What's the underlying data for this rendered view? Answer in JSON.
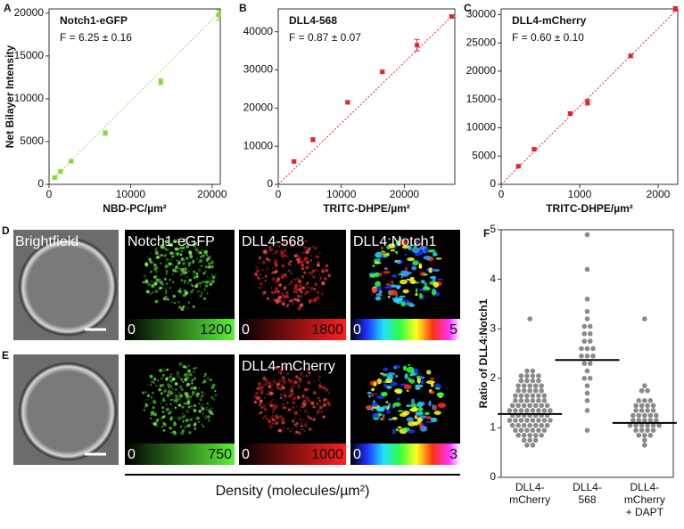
{
  "chart_data": [
    {
      "type": "scatter",
      "label": "A",
      "title": "Notch1-eGFP",
      "annotation": "F = 6.25 ± 0.16",
      "x_label": "NBD-PC/µm²",
      "y_label": "Net Bilayer Intensity",
      "color": "#7ddc3a",
      "fit_color": "#9ee060",
      "x": [
        700,
        1400,
        2700,
        6900,
        13700,
        20800
      ],
      "values": [
        800,
        1500,
        2700,
        6000,
        12000,
        19800
      ],
      "errors": [
        150,
        150,
        150,
        250,
        350,
        600
      ],
      "fit": {
        "x": [
          0,
          21000
        ],
        "values": [
          200,
          20200
        ]
      },
      "xlim": [
        0,
        21000
      ],
      "xticks": [
        0,
        10000,
        20000
      ],
      "ylim": [
        0,
        20500
      ],
      "yticks": [
        0,
        5000,
        10000,
        15000,
        20000
      ]
    },
    {
      "type": "scatter",
      "label": "B",
      "title": "DLL4-568",
      "annotation": "F = 0.87 ± 0.07",
      "x_label": "TRITC-DHPE/µm²",
      "color": "#e0262b",
      "fit_color": "#e0262b",
      "x": [
        2500,
        5500,
        11000,
        16500,
        22000,
        27500
      ],
      "values": [
        6000,
        11700,
        21500,
        29500,
        36500,
        44000
      ],
      "errors": [
        400,
        500,
        400,
        400,
        1500,
        400
      ],
      "fit": {
        "x": [
          0,
          28000
        ],
        "values": [
          0,
          44800
        ]
      },
      "xlim": [
        0,
        28000
      ],
      "xticks": [
        0,
        10000,
        20000
      ],
      "ylim": [
        0,
        46000
      ],
      "yticks": [
        0,
        10000,
        20000,
        30000,
        40000
      ]
    },
    {
      "type": "scatter",
      "label": "C",
      "title": "DLL4-mCherry",
      "annotation": "F = 0.60 ± 0.10",
      "x_label": "TRITC-DHPE/µm²",
      "color": "#e0262b",
      "fit_color": "#e0262b",
      "x": [
        220,
        420,
        880,
        1100,
        1650,
        2220
      ],
      "values": [
        3200,
        6200,
        12500,
        14500,
        22700,
        31000
      ],
      "errors": [
        250,
        250,
        300,
        500,
        300,
        400
      ],
      "fit": {
        "x": [
          0,
          2250
        ],
        "values": [
          0,
          31000
        ]
      },
      "xlim": [
        0,
        2250
      ],
      "xticks": [
        0,
        1000,
        2000
      ],
      "ylim": [
        0,
        31000
      ],
      "yticks": [
        0,
        5000,
        10000,
        15000,
        20000,
        25000,
        30000
      ]
    },
    {
      "type": "strip",
      "label": "F",
      "y_label": "Ratio of DLL4:Notch1",
      "color": "#8a8a8a",
      "categories": [
        "DLL4-\nmCherry",
        "DLL4-\n568",
        "DLL4-\nmCherry\n+ DAPT"
      ],
      "values": [
        [
          3.2,
          2.15,
          2.15,
          2.05,
          2.05,
          2.05,
          2.05,
          1.95,
          1.95,
          1.95,
          1.95,
          1.85,
          1.85,
          1.85,
          1.85,
          1.85,
          1.75,
          1.75,
          1.75,
          1.75,
          1.75,
          1.65,
          1.65,
          1.65,
          1.65,
          1.65,
          1.65,
          1.55,
          1.55,
          1.55,
          1.55,
          1.55,
          1.55,
          1.45,
          1.45,
          1.45,
          1.45,
          1.45,
          1.45,
          1.45,
          1.35,
          1.35,
          1.35,
          1.35,
          1.35,
          1.35,
          1.35,
          1.35,
          1.25,
          1.25,
          1.25,
          1.25,
          1.25,
          1.25,
          1.25,
          1.15,
          1.15,
          1.15,
          1.15,
          1.15,
          1.15,
          1.15,
          1.15,
          1.05,
          1.05,
          1.05,
          1.05,
          1.05,
          1.05,
          1.05,
          0.95,
          0.95,
          0.95,
          0.95,
          0.95,
          0.95,
          0.85,
          0.85,
          0.85,
          0.85,
          0.85,
          0.75,
          0.75,
          0.75,
          0.65,
          0.65
        ],
        [
          4.9,
          4.2,
          3.6,
          3.35,
          3.2,
          3.05,
          3.05,
          2.9,
          2.9,
          2.75,
          2.75,
          2.6,
          2.6,
          2.6,
          2.45,
          2.45,
          2.45,
          2.3,
          2.3,
          2.15,
          2.0,
          2.0,
          1.85,
          1.7,
          1.55,
          1.35,
          0.95
        ],
        [
          3.2,
          1.85,
          1.75,
          1.75,
          1.55,
          1.55,
          1.55,
          1.45,
          1.45,
          1.45,
          1.45,
          1.35,
          1.35,
          1.35,
          1.35,
          1.25,
          1.25,
          1.25,
          1.25,
          1.25,
          1.15,
          1.15,
          1.15,
          1.15,
          1.15,
          1.05,
          1.05,
          1.05,
          1.05,
          1.05,
          1.05,
          0.95,
          0.95,
          0.95,
          0.95,
          0.85,
          0.85,
          0.85,
          0.75,
          0.65
        ]
      ],
      "means": [
        1.28,
        2.37,
        1.1
      ],
      "ylim": [
        0,
        5
      ],
      "yticks": [
        0,
        1,
        2,
        3,
        4,
        5
      ]
    }
  ],
  "image_panels": {
    "density_label": "Density (molecules/µm²)",
    "rows": [
      {
        "label": "D",
        "brightfield": "Brightfield",
        "channels": [
          {
            "name": "Notch1-eGFP",
            "min": 0,
            "max": 1200
          },
          {
            "name": "DLL4-568",
            "min": 0,
            "max": 1800
          },
          {
            "name": "DLL4:Notch1",
            "min": 0,
            "max": 5
          }
        ]
      },
      {
        "label": "E",
        "channels": [
          {
            "min": 0,
            "max": 750
          },
          {
            "name": "DLL4-mCherry",
            "min": 0,
            "max": 1000
          },
          {
            "min": 0,
            "max": 3
          }
        ]
      }
    ]
  }
}
